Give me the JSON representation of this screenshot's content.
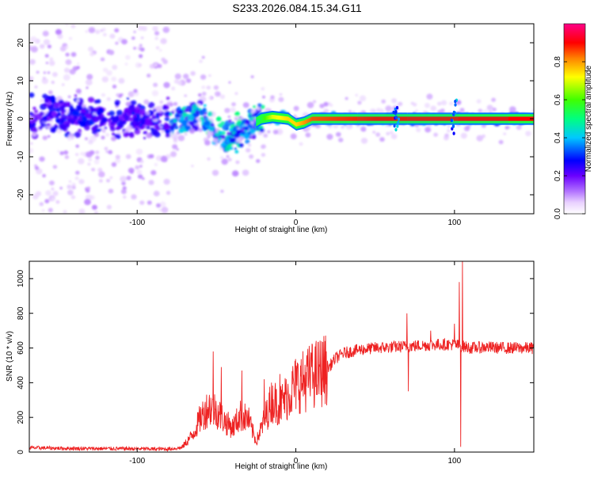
{
  "title": "S233.2026.084.15.34.G11",
  "chart_data": [
    {
      "type": "heatmap",
      "xlabel": "Height of straight line (km)",
      "ylabel": "Frequency (Hz)",
      "xlim": [
        -168,
        150
      ],
      "ylim": [
        -25,
        25
      ],
      "x_ticks": [
        -100,
        0,
        100
      ],
      "y_ticks": [
        -20,
        -10,
        0,
        10,
        20
      ],
      "colorbar": {
        "label": "Normalized spectral amplitude",
        "range": [
          0,
          1
        ],
        "ticks": [
          "0.0",
          "0.2",
          "0.4",
          "0.6",
          "0.8"
        ],
        "colors": [
          "#ffffff",
          "#d9b8ff",
          "#8b00ff",
          "#0000ff",
          "#00ffff",
          "#00ff00",
          "#ffff00",
          "#ff8000",
          "#ff0000",
          "#ff0080"
        ]
      },
      "ridge": [
        {
          "x": -160,
          "f": 1.0,
          "amp": 0.25
        },
        {
          "x": -130,
          "f": 0.5,
          "amp": 0.3
        },
        {
          "x": -100,
          "f": -0.5,
          "amp": 0.3
        },
        {
          "x": -80,
          "f": -1.0,
          "amp": 0.35
        },
        {
          "x": -65,
          "f": 0.5,
          "amp": 0.4
        },
        {
          "x": -60,
          "f": 1.5,
          "amp": 0.45
        },
        {
          "x": -52,
          "f": -3.0,
          "amp": 0.4
        },
        {
          "x": -45,
          "f": -5.5,
          "amp": 0.4
        },
        {
          "x": -38,
          "f": -4.0,
          "amp": 0.4
        },
        {
          "x": -30,
          "f": -2.0,
          "amp": 0.45
        },
        {
          "x": -22,
          "f": 0.0,
          "amp": 0.55
        },
        {
          "x": -15,
          "f": 0.5,
          "amp": 0.7
        },
        {
          "x": -5,
          "f": 0.0,
          "amp": 0.75
        },
        {
          "x": 0,
          "f": -1.5,
          "amp": 0.75
        },
        {
          "x": 5,
          "f": -1.0,
          "amp": 0.8
        },
        {
          "x": 10,
          "f": 0.0,
          "amp": 0.85
        },
        {
          "x": 50,
          "f": 0.0,
          "amp": 0.9
        },
        {
          "x": 100,
          "f": 0.0,
          "amp": 0.9
        },
        {
          "x": 150,
          "f": 0.0,
          "amp": 0.9
        }
      ]
    },
    {
      "type": "line",
      "xlabel": "Height of straight line (km)",
      "ylabel": "SNR (10 * v/v)",
      "xlim": [
        -168,
        150
      ],
      "ylim": [
        0,
        1100
      ],
      "x_ticks": [
        -100,
        0,
        100
      ],
      "y_ticks": [
        0,
        200,
        400,
        600,
        800,
        1000
      ],
      "series": [
        {
          "color": "#ee2222",
          "x": [
            -168,
            -150,
            -130,
            -110,
            -90,
            -80,
            -72,
            -65,
            -60,
            -55,
            -50,
            -45,
            -40,
            -35,
            -30,
            -25,
            -20,
            -15,
            -10,
            -5,
            0,
            5,
            10,
            15,
            20,
            25,
            30,
            40,
            50,
            60,
            70,
            80,
            90,
            100,
            110,
            120,
            130,
            140,
            150
          ],
          "y": [
            25,
            22,
            20,
            20,
            18,
            18,
            25,
            100,
            200,
            260,
            240,
            180,
            140,
            210,
            190,
            60,
            180,
            300,
            270,
            330,
            390,
            410,
            440,
            460,
            480,
            540,
            570,
            590,
            600,
            605,
            610,
            615,
            620,
            620,
            600,
            605,
            600,
            600,
            600
          ]
        }
      ],
      "spikes": [
        {
          "x": -52,
          "y": 580
        },
        {
          "x": -47,
          "y": 490
        },
        {
          "x": -34,
          "y": 470
        },
        {
          "x": -20,
          "y": 420
        },
        {
          "x": -10,
          "y": 450
        },
        {
          "x": 10,
          "y": 490
        },
        {
          "x": 65,
          "y": 640
        },
        {
          "x": 70,
          "y": 800
        },
        {
          "x": 71,
          "y": 350
        },
        {
          "x": 85,
          "y": 700
        },
        {
          "x": 100,
          "y": 740
        },
        {
          "x": 103,
          "y": 980
        },
        {
          "x": 104,
          "y": 30
        },
        {
          "x": 105,
          "y": 1100
        }
      ]
    }
  ]
}
